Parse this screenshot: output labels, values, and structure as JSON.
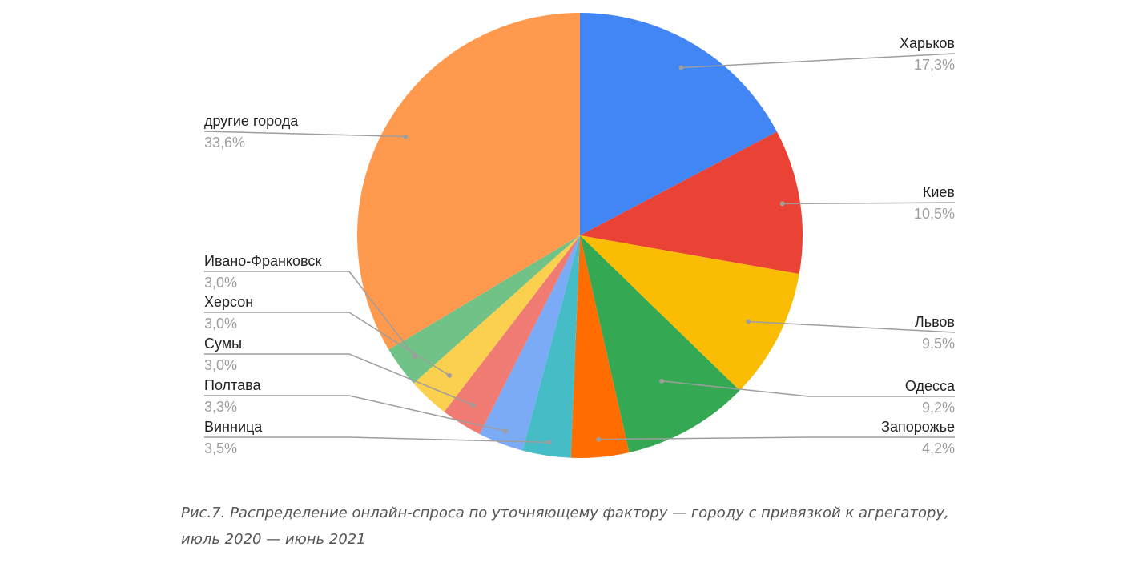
{
  "caption": {
    "line1": "Рис.7. Распределение онлайн-спроса по уточняющему фактору — городу с привязкой к агрегатору,",
    "line2": "июль 2020 — июнь 2021"
  },
  "chart_data": {
    "type": "pie",
    "title": "",
    "slices": [
      {
        "label": "Харьков",
        "value": 17.3,
        "value_text": "17,3%",
        "color": "#4285f4"
      },
      {
        "label": "Киев",
        "value": 10.5,
        "value_text": "10,5%",
        "color": "#ea4335"
      },
      {
        "label": "Львов",
        "value": 9.5,
        "value_text": "9,5%",
        "color": "#fbbc04"
      },
      {
        "label": "Одесса",
        "value": 9.2,
        "value_text": "9,2%",
        "color": "#34a853"
      },
      {
        "label": "Запорожье",
        "value": 4.2,
        "value_text": "4,2%",
        "color": "#ff6d01"
      },
      {
        "label": "Винница",
        "value": 3.5,
        "value_text": "3,5%",
        "color": "#46bdc6"
      },
      {
        "label": "Полтава",
        "value": 3.3,
        "value_text": "3,3%",
        "color": "#7baaf7"
      },
      {
        "label": "Сумы",
        "value": 3.0,
        "value_text": "3,0%",
        "color": "#f07b72"
      },
      {
        "label": "Херсон",
        "value": 3.0,
        "value_text": "3,0%",
        "color": "#fcd04f"
      },
      {
        "label": "Ивано-Франковск",
        "value": 3.0,
        "value_text": "3,0%",
        "color": "#71c287"
      },
      {
        "label": "другие города",
        "value": 33.6,
        "value_text": "33,6%",
        "color": "#ff994d"
      }
    ],
    "start_angle": "12 o'clock",
    "direction": "clockwise",
    "label_style": "outside with leader lines"
  }
}
